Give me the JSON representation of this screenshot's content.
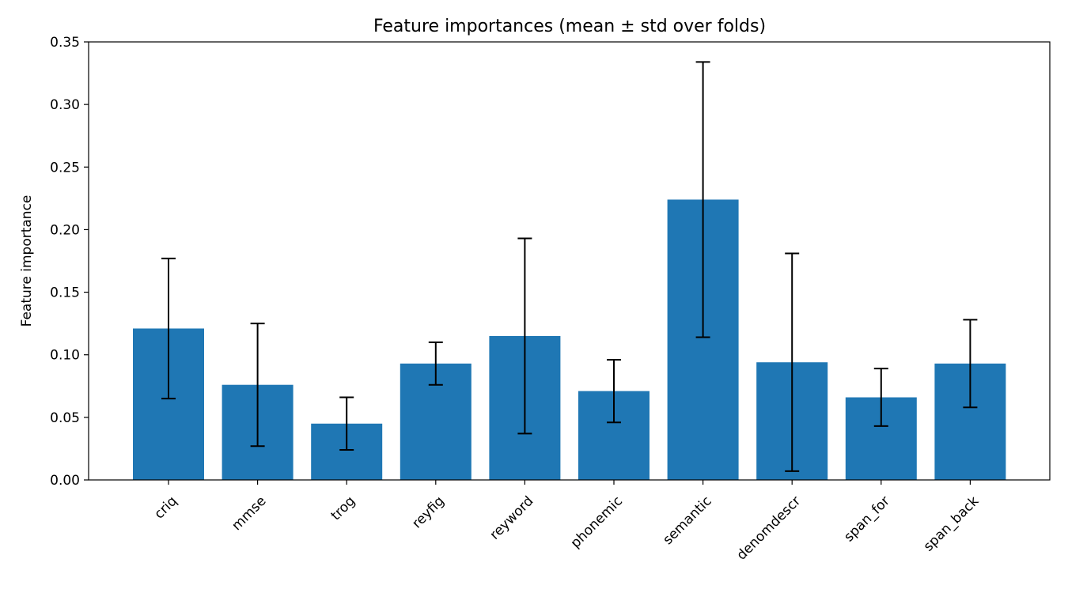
{
  "chart_data": {
    "type": "bar",
    "title": "Feature importances (mean ± std over folds)",
    "xlabel": "",
    "ylabel": "Feature importance",
    "categories": [
      "criq",
      "mmse",
      "trog",
      "reyfig",
      "reyword",
      "phonemic",
      "semantic",
      "denomdescr",
      "span_for",
      "span_back"
    ],
    "values": [
      0.121,
      0.076,
      0.045,
      0.093,
      0.115,
      0.071,
      0.224,
      0.094,
      0.066,
      0.093
    ],
    "errors": [
      0.056,
      0.049,
      0.021,
      0.017,
      0.078,
      0.025,
      0.11,
      0.087,
      0.023,
      0.035
    ],
    "ylim": [
      0,
      0.35
    ],
    "yticks": [
      0.0,
      0.05,
      0.1,
      0.15,
      0.2,
      0.25,
      0.3,
      0.35
    ],
    "ytick_labels": [
      "0.00",
      "0.05",
      "0.10",
      "0.15",
      "0.20",
      "0.25",
      "0.30",
      "0.35"
    ],
    "grid": false,
    "legend": "none",
    "bar_color": "#1f77b4",
    "error_color": "#000000"
  }
}
